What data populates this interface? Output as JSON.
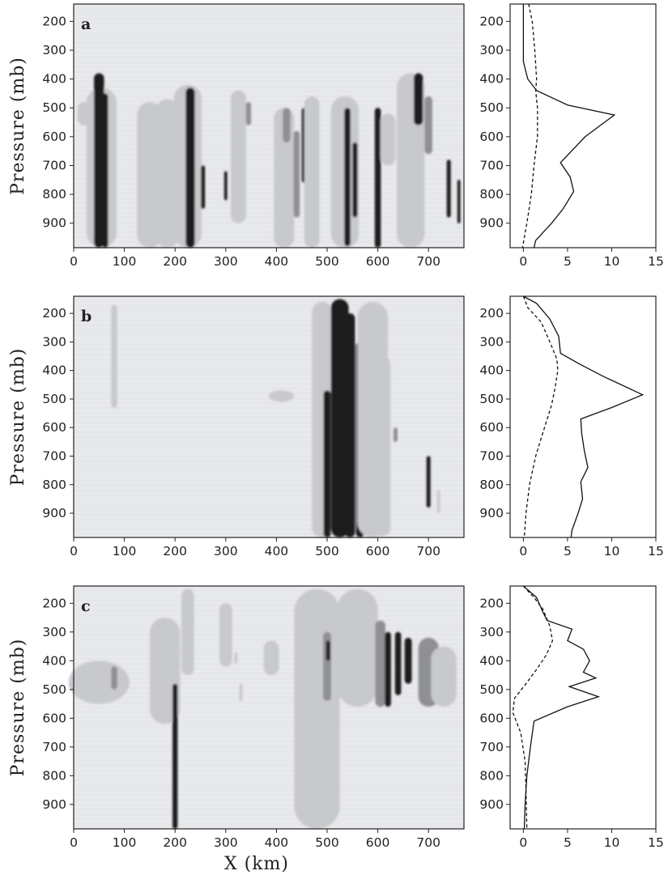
{
  "chart_data": [
    {
      "type": "heatmap",
      "panel": "a",
      "ylabel": "Pressure (mb)",
      "xlabel": "",
      "xlim": [
        0,
        770
      ],
      "ylim": [
        985,
        140
      ],
      "xticks": [
        "0",
        "100",
        "200",
        "300",
        "400",
        "500",
        "600",
        "700"
      ],
      "yticks": [
        "200",
        "300",
        "400",
        "500",
        "600",
        "700",
        "800",
        "900"
      ],
      "profile": {
        "xlim": [
          -1.5,
          15
        ],
        "xticks": [
          "0",
          "5",
          "10",
          "15"
        ],
        "yticks": [
          "200",
          "300",
          "400",
          "500",
          "600",
          "700",
          "800",
          "900"
        ],
        "solid": [
          [
            0,
            140
          ],
          [
            0,
            200
          ],
          [
            0,
            250
          ],
          [
            0,
            300
          ],
          [
            0,
            340
          ],
          [
            0.5,
            400
          ],
          [
            1.5,
            440
          ],
          [
            5,
            490
          ],
          [
            10.3,
            525
          ],
          [
            7,
            600
          ],
          [
            4.2,
            690
          ],
          [
            5.3,
            740
          ],
          [
            5.7,
            790
          ],
          [
            4.5,
            850
          ],
          [
            3.2,
            900
          ],
          [
            1.4,
            960
          ],
          [
            1.2,
            985
          ]
        ],
        "dashed": [
          [
            0.6,
            140
          ],
          [
            1,
            200
          ],
          [
            1.3,
            300
          ],
          [
            1.5,
            400
          ],
          [
            1.4,
            440
          ],
          [
            1.6,
            500
          ],
          [
            1.6,
            600
          ],
          [
            1.2,
            700
          ],
          [
            0.9,
            800
          ],
          [
            0.4,
            900
          ],
          [
            -0.1,
            985
          ]
        ]
      }
    },
    {
      "type": "heatmap",
      "panel": "b",
      "ylabel": "Pressure (mb)",
      "xlabel": "",
      "xlim": [
        0,
        770
      ],
      "ylim": [
        985,
        140
      ],
      "xticks": [
        "0",
        "100",
        "200",
        "300",
        "400",
        "500",
        "600",
        "700"
      ],
      "yticks": [
        "200",
        "300",
        "400",
        "500",
        "600",
        "700",
        "800",
        "900"
      ],
      "profile": {
        "xlim": [
          -1.5,
          15
        ],
        "xticks": [
          "0",
          "5",
          "10",
          "15"
        ],
        "yticks": [
          "200",
          "300",
          "400",
          "500",
          "600",
          "700",
          "800",
          "900"
        ],
        "solid": [
          [
            0,
            140
          ],
          [
            1.5,
            165
          ],
          [
            3,
            220
          ],
          [
            4,
            280
          ],
          [
            4.2,
            340
          ],
          [
            6.5,
            380
          ],
          [
            9,
            420
          ],
          [
            13.5,
            485
          ],
          [
            10,
            530
          ],
          [
            6.5,
            570
          ],
          [
            6.6,
            620
          ],
          [
            6.9,
            680
          ],
          [
            7.3,
            740
          ],
          [
            6.5,
            790
          ],
          [
            6.7,
            850
          ],
          [
            6.2,
            900
          ],
          [
            5.5,
            960
          ],
          [
            5.4,
            985
          ]
        ],
        "dashed": [
          [
            0,
            140
          ],
          [
            0.5,
            180
          ],
          [
            2,
            230
          ],
          [
            3,
            300
          ],
          [
            3.8,
            360
          ],
          [
            3.9,
            400
          ],
          [
            3.6,
            460
          ],
          [
            3.2,
            520
          ],
          [
            2.4,
            600
          ],
          [
            1.4,
            700
          ],
          [
            0.7,
            800
          ],
          [
            0.3,
            900
          ],
          [
            0.1,
            985
          ]
        ]
      }
    },
    {
      "type": "heatmap",
      "panel": "c",
      "ylabel": "Pressure (mb)",
      "xlabel": "X (km)",
      "xlim": [
        0,
        770
      ],
      "ylim": [
        985,
        140
      ],
      "xticks": [
        "0",
        "100",
        "200",
        "300",
        "400",
        "500",
        "600",
        "700"
      ],
      "yticks": [
        "200",
        "300",
        "400",
        "500",
        "600",
        "700",
        "800",
        "900"
      ],
      "profile": {
        "xlim": [
          -1.5,
          15
        ],
        "xticks": [
          "0",
          "5",
          "10",
          "15"
        ],
        "yticks": [
          "200",
          "300",
          "400",
          "500",
          "600",
          "700",
          "800",
          "900"
        ],
        "solid": [
          [
            0,
            140
          ],
          [
            1.5,
            180
          ],
          [
            2.2,
            230
          ],
          [
            2.7,
            260
          ],
          [
            5.5,
            290
          ],
          [
            5,
            330
          ],
          [
            6.8,
            360
          ],
          [
            7.5,
            400
          ],
          [
            6.8,
            440
          ],
          [
            8.2,
            460
          ],
          [
            5.2,
            490
          ],
          [
            8.5,
            525
          ],
          [
            5,
            560
          ],
          [
            1.2,
            610
          ],
          [
            0.8,
            700
          ],
          [
            0.4,
            800
          ],
          [
            0.2,
            900
          ],
          [
            0.1,
            985
          ]
        ],
        "dashed": [
          [
            0,
            140
          ],
          [
            1.2,
            180
          ],
          [
            2.2,
            220
          ],
          [
            3,
            280
          ],
          [
            3.3,
            330
          ],
          [
            2.6,
            380
          ],
          [
            1.5,
            430
          ],
          [
            0.3,
            480
          ],
          [
            -1,
            530
          ],
          [
            -1.2,
            580
          ],
          [
            -0.3,
            650
          ],
          [
            0.2,
            750
          ],
          [
            0.3,
            850
          ],
          [
            0.4,
            985
          ]
        ]
      }
    }
  ]
}
